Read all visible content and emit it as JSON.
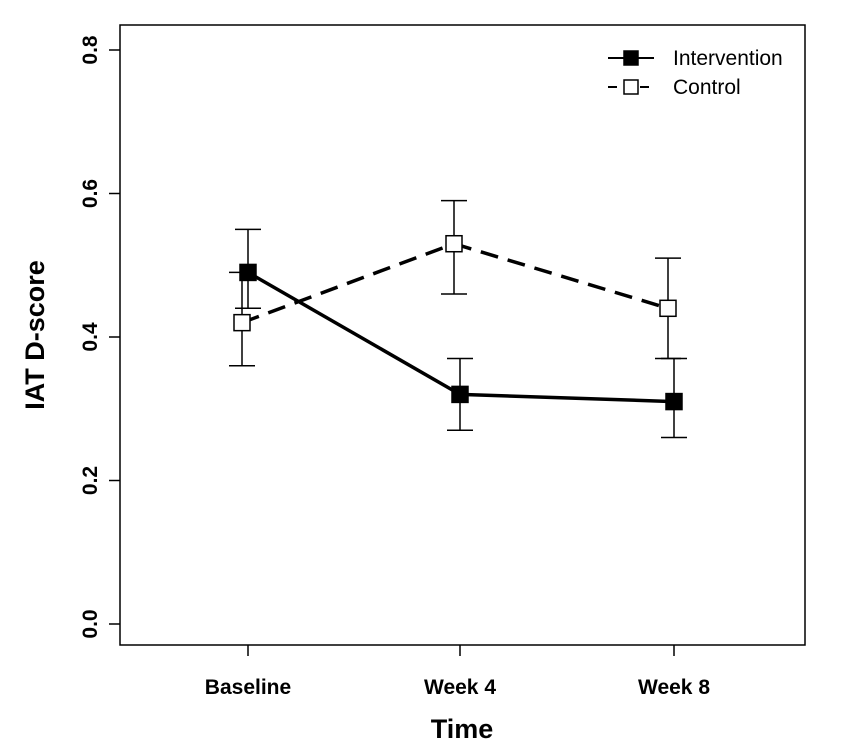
{
  "chart_data": {
    "type": "line",
    "title": "",
    "xlabel": "Time",
    "ylabel": "IAT D-score",
    "categories": [
      "Baseline",
      "Week 4",
      "Week 8"
    ],
    "ylim": [
      0.0,
      0.8
    ],
    "yticks": [
      "0.0",
      "0.2",
      "0.4",
      "0.6",
      "0.8"
    ],
    "grid": false,
    "legend_position": "top-right",
    "series": [
      {
        "name": "Intervention",
        "values": [
          0.49,
          0.32,
          0.31
        ],
        "error_low": [
          0.44,
          0.27,
          0.26
        ],
        "error_high": [
          0.55,
          0.37,
          0.37
        ],
        "line_style": "solid",
        "marker": "filled-square",
        "color": "#000000"
      },
      {
        "name": "Control",
        "values": [
          0.42,
          0.53,
          0.44
        ],
        "error_low": [
          0.36,
          0.46,
          0.37
        ],
        "error_high": [
          0.49,
          0.59,
          0.51
        ],
        "line_style": "dashed",
        "marker": "open-square",
        "color": "#000000"
      }
    ]
  }
}
